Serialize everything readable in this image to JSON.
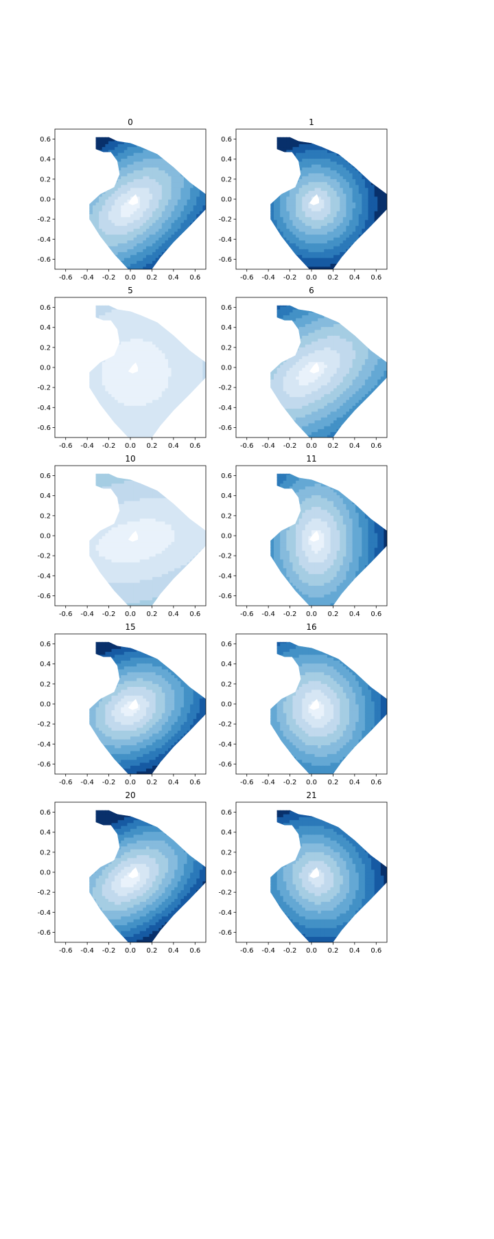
{
  "figure": {
    "colors": {
      "blues": [
        "#f7fbff",
        "#e9f2fb",
        "#d6e6f4",
        "#c1d9ed",
        "#a5cde3",
        "#86bbdd",
        "#64a8d4",
        "#4391c6",
        "#2b79b9",
        "#165aa3",
        "#08306b"
      ],
      "frame": "#000000",
      "background": "#ffffff"
    }
  },
  "chart_data": [
    {
      "type": "contour",
      "title": "0",
      "xlabel": "",
      "ylabel": "",
      "xlim": [
        -0.7,
        0.7
      ],
      "ylim": [
        -0.7,
        0.7
      ],
      "xticks": [
        "-0.6",
        "-0.4",
        "-0.2",
        "0.0",
        "0.2",
        "0.4",
        "0.6"
      ],
      "yticks": [
        "0.6",
        "0.4",
        "0.2",
        "0.0",
        "-0.2",
        "-0.4",
        "-0.6"
      ],
      "field": {
        "center": [
          0.0,
          -0.07
        ],
        "rotation_deg": 45,
        "scale": [
          0.95,
          0.55
        ],
        "levels": 8,
        "min_level": 1
      }
    },
    {
      "type": "contour",
      "title": "1",
      "xlabel": "",
      "ylabel": "",
      "xlim": [
        -0.7,
        0.7
      ],
      "ylim": [
        -0.7,
        0.7
      ],
      "xticks": [
        "-0.6",
        "-0.4",
        "-0.2",
        "0.0",
        "0.2",
        "0.4",
        "0.6"
      ],
      "yticks": [
        "0.6",
        "0.4",
        "0.2",
        "0.0",
        "-0.2",
        "-0.4",
        "-0.6"
      ],
      "field": {
        "center": [
          0.05,
          -0.05
        ],
        "rotation_deg": 0,
        "scale": [
          0.62,
          0.7
        ],
        "levels": 9,
        "min_level": 2
      }
    },
    {
      "type": "contour",
      "title": "5",
      "xlabel": "",
      "ylabel": "",
      "xlim": [
        -0.7,
        0.7
      ],
      "ylim": [
        -0.7,
        0.7
      ],
      "xticks": [
        "-0.6",
        "-0.4",
        "-0.2",
        "0.0",
        "0.2",
        "0.4",
        "0.6"
      ],
      "yticks": [
        "0.6",
        "0.4",
        "0.2",
        "0.0",
        "-0.2",
        "-0.4",
        "-0.6"
      ],
      "field": {
        "center": [
          0.05,
          -0.05
        ],
        "rotation_deg": 0,
        "scale": [
          0.95,
          1.0
        ],
        "levels": 3,
        "min_level": 1
      }
    },
    {
      "type": "contour",
      "title": "6",
      "xlabel": "",
      "ylabel": "",
      "xlim": [
        -0.7,
        0.7
      ],
      "ylim": [
        -0.7,
        0.7
      ],
      "xticks": [
        "-0.6",
        "-0.4",
        "-0.2",
        "0.0",
        "0.2",
        "0.4",
        "0.6"
      ],
      "yticks": [
        "0.6",
        "0.4",
        "0.2",
        "0.0",
        "-0.2",
        "-0.4",
        "-0.6"
      ],
      "field": {
        "center": [
          0.0,
          -0.05
        ],
        "rotation_deg": 40,
        "scale": [
          1.1,
          0.6
        ],
        "levels": 7,
        "min_level": 1
      }
    },
    {
      "type": "contour",
      "title": "10",
      "xlabel": "",
      "ylabel": "",
      "xlim": [
        -0.7,
        0.7
      ],
      "ylim": [
        -0.7,
        0.7
      ],
      "xticks": [
        "-0.6",
        "-0.4",
        "-0.2",
        "0.0",
        "0.2",
        "0.4",
        "0.6"
      ],
      "yticks": [
        "0.6",
        "0.4",
        "0.2",
        "0.0",
        "-0.2",
        "-0.4",
        "-0.6"
      ],
      "field": {
        "center": [
          0.05,
          -0.05
        ],
        "rotation_deg": 15,
        "scale": [
          1.1,
          0.6
        ],
        "levels": 3,
        "min_level": 1
      }
    },
    {
      "type": "contour",
      "title": "11",
      "xlabel": "",
      "ylabel": "",
      "xlim": [
        -0.7,
        0.7
      ],
      "ylim": [
        -0.7,
        0.7
      ],
      "xticks": [
        "-0.6",
        "-0.4",
        "-0.2",
        "0.0",
        "0.2",
        "0.4",
        "0.6"
      ],
      "yticks": [
        "0.6",
        "0.4",
        "0.2",
        "0.0",
        "-0.2",
        "-0.4",
        "-0.6"
      ],
      "field": {
        "center": [
          0.05,
          -0.05
        ],
        "rotation_deg": 0,
        "scale": [
          0.55,
          0.9
        ],
        "levels": 8,
        "min_level": 1
      }
    },
    {
      "type": "contour",
      "title": "15",
      "xlabel": "",
      "ylabel": "",
      "xlim": [
        -0.7,
        0.7
      ],
      "ylim": [
        -0.7,
        0.7
      ],
      "xticks": [
        "-0.6",
        "-0.4",
        "-0.2",
        "0.0",
        "0.2",
        "0.4",
        "0.6"
      ],
      "yticks": [
        "0.6",
        "0.4",
        "0.2",
        "0.0",
        "-0.2",
        "-0.4",
        "-0.6"
      ],
      "field": {
        "center": [
          0.0,
          -0.05
        ],
        "rotation_deg": 35,
        "scale": [
          0.8,
          0.6
        ],
        "levels": 9,
        "min_level": 1
      }
    },
    {
      "type": "contour",
      "title": "16",
      "xlabel": "",
      "ylabel": "",
      "xlim": [
        -0.7,
        0.7
      ],
      "ylim": [
        -0.7,
        0.7
      ],
      "xticks": [
        "-0.6",
        "-0.4",
        "-0.2",
        "0.0",
        "0.2",
        "0.4",
        "0.6"
      ],
      "yticks": [
        "0.6",
        "0.4",
        "0.2",
        "0.0",
        "-0.2",
        "-0.4",
        "-0.6"
      ],
      "field": {
        "center": [
          0.05,
          -0.05
        ],
        "rotation_deg": 10,
        "scale": [
          0.6,
          0.75
        ],
        "levels": 8,
        "min_level": 1
      }
    },
    {
      "type": "contour",
      "title": "20",
      "xlabel": "",
      "ylabel": "",
      "xlim": [
        -0.7,
        0.7
      ],
      "ylim": [
        -0.7,
        0.7
      ],
      "xticks": [
        "-0.6",
        "-0.4",
        "-0.2",
        "0.0",
        "0.2",
        "0.4",
        "0.6"
      ],
      "yticks": [
        "0.6",
        "0.4",
        "0.2",
        "0.0",
        "-0.2",
        "-0.4",
        "-0.6"
      ],
      "field": {
        "center": [
          0.0,
          -0.07
        ],
        "rotation_deg": 40,
        "scale": [
          0.9,
          0.55
        ],
        "levels": 9,
        "min_level": 1
      }
    },
    {
      "type": "contour",
      "title": "21",
      "xlabel": "",
      "ylabel": "",
      "xlim": [
        -0.7,
        0.7
      ],
      "ylim": [
        -0.7,
        0.7
      ],
      "xticks": [
        "-0.6",
        "-0.4",
        "-0.2",
        "0.0",
        "0.2",
        "0.4",
        "0.6"
      ],
      "yticks": [
        "0.6",
        "0.4",
        "0.2",
        "0.0",
        "-0.2",
        "-0.4",
        "-0.6"
      ],
      "field": {
        "center": [
          0.05,
          -0.05
        ],
        "rotation_deg": 20,
        "scale": [
          0.6,
          0.7
        ],
        "levels": 8,
        "min_level": 2
      }
    }
  ]
}
